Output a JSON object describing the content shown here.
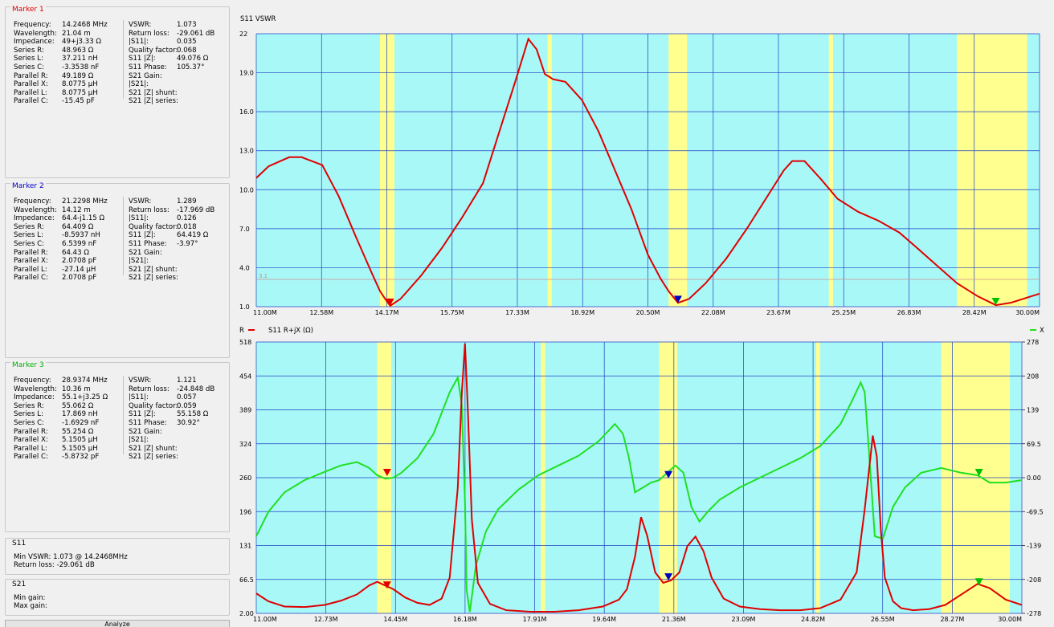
{
  "markers": [
    {
      "title": "Marker 1",
      "color": "#e00000",
      "left_fields": [
        [
          "Frequency:",
          "14.2468 MHz"
        ],
        [
          "Wavelength:",
          "21.04 m"
        ],
        [
          "Impedance:",
          "49+j3.33 Ω"
        ],
        [
          "Series R:",
          "48.963 Ω"
        ],
        [
          "Series L:",
          "37.211 nH"
        ],
        [
          "Series C:",
          "-3.3538 nF"
        ],
        [
          "Parallel R:",
          "49.189 Ω"
        ],
        [
          "Parallel X:",
          "8.0775 µH"
        ],
        [
          "Parallel L:",
          "8.0775 µH"
        ],
        [
          "Parallel C:",
          "-15.45 pF"
        ]
      ],
      "right_fields": [
        [
          "VSWR:",
          "1.073"
        ],
        [
          "Return loss:",
          "-29.061 dB"
        ],
        [
          "|S11|:",
          "0.035"
        ],
        [
          "Quality factor:",
          "0.068"
        ],
        [
          "S11 |Z|:",
          "49.076 Ω"
        ],
        [
          "S11 Phase:",
          "105.37°"
        ],
        [
          "S21 Gain:",
          ""
        ],
        [
          "|S21|:",
          ""
        ],
        [
          "S21 |Z| shunt:",
          ""
        ],
        [
          "S21 |Z| series:",
          ""
        ]
      ]
    },
    {
      "title": "Marker 2",
      "color": "#0000c0",
      "left_fields": [
        [
          "Frequency:",
          "21.2298 MHz"
        ],
        [
          "Wavelength:",
          "14.12 m"
        ],
        [
          "Impedance:",
          "64.4-j1.15 Ω"
        ],
        [
          "Series R:",
          "64.409 Ω"
        ],
        [
          "Series L:",
          "-8.5937 nH"
        ],
        [
          "Series C:",
          "6.5399 nF"
        ],
        [
          "Parallel R:",
          "64.43 Ω"
        ],
        [
          "Parallel X:",
          "2.0708 pF"
        ],
        [
          "Parallel L:",
          "-27.14 µH"
        ],
        [
          "Parallel C:",
          "2.0708 pF"
        ]
      ],
      "right_fields": [
        [
          "VSWR:",
          "1.289"
        ],
        [
          "Return loss:",
          "-17.969 dB"
        ],
        [
          "|S11|:",
          "0.126"
        ],
        [
          "Quality factor:",
          "0.018"
        ],
        [
          "S11 |Z|:",
          "64.419 Ω"
        ],
        [
          "S11 Phase:",
          "-3.97°"
        ],
        [
          "S21 Gain:",
          ""
        ],
        [
          "|S21|:",
          ""
        ],
        [
          "S21 |Z| shunt:",
          ""
        ],
        [
          "S21 |Z| series:",
          ""
        ]
      ]
    },
    {
      "title": "Marker 3",
      "color": "#00b000",
      "left_fields": [
        [
          "Frequency:",
          "28.9374 MHz"
        ],
        [
          "Wavelength:",
          "10.36 m"
        ],
        [
          "Impedance:",
          "55.1+j3.25 Ω"
        ],
        [
          "Series R:",
          "55.062 Ω"
        ],
        [
          "Series L:",
          "17.869 nH"
        ],
        [
          "Series C:",
          "-1.6929 nF"
        ],
        [
          "Parallel R:",
          "55.254 Ω"
        ],
        [
          "Parallel X:",
          "5.1505 µH"
        ],
        [
          "Parallel L:",
          "5.1505 µH"
        ],
        [
          "Parallel C:",
          "-5.8732 pF"
        ]
      ],
      "right_fields": [
        [
          "VSWR:",
          "1.121"
        ],
        [
          "Return loss:",
          "-24.848 dB"
        ],
        [
          "|S11|:",
          "0.057"
        ],
        [
          "Quality factor:",
          "0.059"
        ],
        [
          "S11 |Z|:",
          "55.158 Ω"
        ],
        [
          "S11 Phase:",
          "30.92°"
        ],
        [
          "S21 Gain:",
          ""
        ],
        [
          "|S21|:",
          ""
        ],
        [
          "S21 |Z| shunt:",
          ""
        ],
        [
          "S21 |Z| series:",
          ""
        ]
      ]
    }
  ],
  "s11_summary": {
    "title": "S11",
    "min_vswr": "Min VSWR:  1.073 @ 14.2468MHz",
    "return_loss": "Return loss: -29.061 dB"
  },
  "s21_summary": {
    "title": "S21",
    "min_gain": "Min gain:",
    "max_gain": "Max gain:"
  },
  "bottom_button": "Analyze",
  "colors": {
    "plot_bg": "#a8f8f8",
    "band": "#ffff90",
    "grid": "#2040c0",
    "red_trace": "#e00000",
    "green_trace": "#20e020",
    "marker1": "#e00000",
    "marker2": "#0000c0",
    "marker3": "#00c000"
  },
  "chart_data": [
    {
      "type": "line",
      "title": "S11 VSWR",
      "xlabel": "",
      "ylabel": "",
      "xlim": [
        11.0,
        30.0
      ],
      "ylim": [
        1.0,
        22.0
      ],
      "x_ticks": [
        "11.00M",
        "12.58M",
        "14.17M",
        "15.75M",
        "17.33M",
        "18.92M",
        "20.50M",
        "22.08M",
        "23.67M",
        "25.25M",
        "26.83M",
        "28.42M",
        "30.00M"
      ],
      "y_ticks": [
        "1.0",
        "4.0",
        "7.0",
        "10.0",
        "13.0",
        "16.0",
        "19.0",
        "22"
      ],
      "reference_line": {
        "value": 3.1,
        "label": "3.1"
      },
      "bands_mhz": [
        [
          14.0,
          14.35
        ],
        [
          18.068,
          18.168
        ],
        [
          21.0,
          21.45
        ],
        [
          24.89,
          24.99
        ],
        [
          28.0,
          29.7
        ]
      ],
      "series": [
        {
          "x": [
            11.0,
            11.3,
            11.8,
            12.1,
            12.6,
            13.0,
            13.4,
            13.8,
            14.0,
            14.17,
            14.25,
            14.5,
            15.0,
            15.5,
            16.0,
            16.5,
            17.0,
            17.3,
            17.6,
            17.8,
            18.0,
            18.2,
            18.5,
            18.9,
            19.3,
            19.7,
            20.1,
            20.5,
            20.8,
            21.0,
            21.23,
            21.5,
            21.9,
            22.4,
            22.9,
            23.4,
            23.8,
            24.0,
            24.3,
            24.7,
            25.1,
            25.6,
            26.1,
            26.6,
            27.0,
            27.5,
            28.0,
            28.5,
            28.94,
            29.3,
            29.6,
            30.0
          ],
          "values": [
            10.9,
            11.8,
            12.5,
            12.5,
            11.9,
            9.5,
            6.5,
            3.6,
            2.2,
            1.4,
            1.07,
            1.6,
            3.4,
            5.5,
            7.9,
            10.5,
            15.5,
            18.5,
            21.6,
            20.8,
            18.9,
            18.5,
            18.3,
            16.9,
            14.5,
            11.5,
            8.5,
            5.0,
            3.2,
            2.2,
            1.3,
            1.6,
            2.8,
            4.7,
            7.0,
            9.5,
            11.5,
            12.2,
            12.2,
            10.8,
            9.3,
            8.3,
            7.6,
            6.7,
            5.6,
            4.2,
            2.8,
            1.8,
            1.12,
            1.3,
            1.6,
            2.0
          ]
        }
      ],
      "markers": [
        {
          "name": "1",
          "x": 14.2468,
          "y": 1.073
        },
        {
          "name": "2",
          "x": 21.2298,
          "y": 1.289
        },
        {
          "name": "3",
          "x": 28.9374,
          "y": 1.121
        }
      ]
    },
    {
      "type": "line",
      "title": "S11 R+jX (Ω)",
      "xlabel": "",
      "ylabel": "",
      "xlim": [
        11.0,
        30.0
      ],
      "ylim_left": [
        2.0,
        518.0
      ],
      "ylim_right": [
        -278.0,
        278.0
      ],
      "x_ticks": [
        "11.00M",
        "12.73M",
        "14.45M",
        "16.18M",
        "17.91M",
        "19.64M",
        "21.36M",
        "23.09M",
        "24.82M",
        "26.55M",
        "28.27M",
        "30.00M"
      ],
      "y_ticks_left": [
        "2.00",
        "66.5",
        "131",
        "196",
        "260",
        "324",
        "389",
        "454",
        "518"
      ],
      "y_ticks_right": [
        "-278",
        "-208",
        "-139",
        "-69.5",
        "0.00",
        "69.5",
        "139",
        "208",
        "278"
      ],
      "legend_left": "R",
      "legend_right": "X",
      "bands_mhz": [
        [
          14.0,
          14.35
        ],
        [
          18.068,
          18.168
        ],
        [
          21.0,
          21.45
        ],
        [
          24.89,
          24.99
        ],
        [
          28.0,
          29.7
        ]
      ],
      "series": [
        {
          "name": "R",
          "axis": "left",
          "x": [
            11.0,
            11.3,
            11.7,
            12.2,
            12.7,
            13.1,
            13.5,
            13.8,
            14.0,
            14.2,
            14.4,
            14.7,
            15.0,
            15.3,
            15.6,
            15.8,
            16.0,
            16.1,
            16.18,
            16.25,
            16.35,
            16.5,
            16.8,
            17.2,
            17.8,
            18.4,
            19.0,
            19.6,
            20.0,
            20.2,
            20.4,
            20.55,
            20.7,
            20.9,
            21.1,
            21.3,
            21.5,
            21.7,
            21.9,
            22.1,
            22.3,
            22.6,
            23.0,
            23.5,
            24.0,
            24.5,
            25.0,
            25.5,
            25.9,
            26.1,
            26.3,
            26.4,
            26.5,
            26.6,
            26.8,
            27.0,
            27.3,
            27.7,
            28.1,
            28.5,
            28.9,
            29.2,
            29.6,
            30.0
          ],
          "values": [
            40,
            25,
            15,
            14,
            18,
            26,
            38,
            55,
            62,
            55,
            48,
            32,
            22,
            18,
            30,
            70,
            240,
            420,
            515,
            390,
            180,
            60,
            20,
            8,
            5,
            5,
            8,
            15,
            28,
            48,
            110,
            185,
            150,
            80,
            60,
            65,
            80,
            130,
            148,
            120,
            70,
            30,
            15,
            10,
            8,
            8,
            12,
            28,
            80,
            200,
            340,
            300,
            160,
            70,
            25,
            12,
            8,
            10,
            18,
            38,
            58,
            50,
            28,
            18
          ]
        },
        {
          "name": "X",
          "axis": "right",
          "x": [
            11.0,
            11.3,
            11.7,
            12.2,
            12.7,
            13.1,
            13.5,
            13.8,
            14.0,
            14.2,
            14.4,
            14.6,
            15.0,
            15.4,
            15.8,
            16.0,
            16.1,
            16.18,
            16.22,
            16.3,
            16.45,
            16.7,
            17.0,
            17.5,
            18.0,
            18.5,
            19.0,
            19.5,
            19.9,
            20.1,
            20.25,
            20.4,
            20.6,
            20.8,
            21.0,
            21.2,
            21.4,
            21.6,
            21.8,
            22.0,
            22.2,
            22.5,
            23.0,
            23.5,
            24.0,
            24.5,
            25.0,
            25.5,
            25.8,
            26.0,
            26.1,
            26.2,
            26.35,
            26.55,
            26.8,
            27.1,
            27.5,
            28.0,
            28.5,
            28.9,
            29.2,
            29.6,
            30.0
          ],
          "values": [
            -120,
            -70,
            -30,
            -5,
            12,
            25,
            32,
            20,
            5,
            -2,
            0,
            10,
            40,
            90,
            175,
            205,
            150,
            -50,
            -230,
            -275,
            -180,
            -110,
            -65,
            -25,
            5,
            25,
            45,
            75,
            110,
            90,
            40,
            -30,
            -20,
            -10,
            -5,
            10,
            25,
            10,
            -60,
            -90,
            -70,
            -45,
            -20,
            0,
            20,
            40,
            65,
            110,
            160,
            195,
            175,
            60,
            -120,
            -125,
            -60,
            -20,
            10,
            20,
            10,
            5,
            -10,
            -10,
            -5
          ]
        }
      ],
      "markers": [
        {
          "name": "1",
          "x": 14.2468,
          "r": 48.963,
          "xv": 3.33
        },
        {
          "name": "2",
          "x": 21.2298,
          "r": 64.409,
          "xv": -1.15
        },
        {
          "name": "3",
          "x": 28.9374,
          "r": 55.062,
          "xv": 3.25
        }
      ]
    }
  ]
}
